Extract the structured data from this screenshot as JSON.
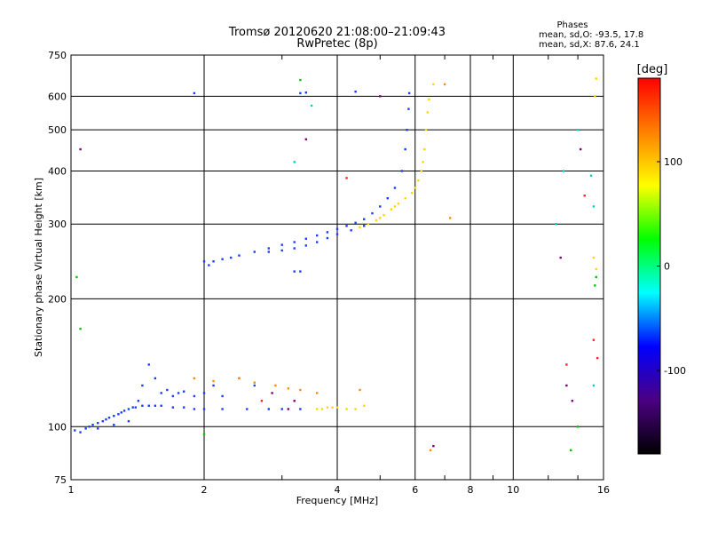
{
  "chart_data": {
    "type": "scatter",
    "title": "Tromsø 20120620 21:08:00–21:09:43",
    "subtitle": "RwPretec (8p)",
    "xlabel": "Frequency [MHz]",
    "ylabel": "Stationary phase Virtual Height [km]",
    "x_scale": "log",
    "y_scale": "log",
    "xlim": [
      1,
      16
    ],
    "ylim": [
      75,
      750
    ],
    "x_ticks": [
      1,
      2,
      4,
      6,
      8,
      10,
      16
    ],
    "x_tick_labels": [
      "1",
      "2",
      "4",
      "6",
      "8",
      "10",
      "16"
    ],
    "x_minor_ticks": [
      3,
      5,
      7,
      9,
      12,
      14
    ],
    "y_ticks": [
      75,
      100,
      200,
      300,
      400,
      500,
      600,
      750
    ],
    "y_tick_labels": [
      "75",
      "100",
      "200",
      "300",
      "400",
      "500",
      "600",
      "750"
    ],
    "grid": true,
    "stats_header": "Phases",
    "stats": [
      "mean, sd,O: -93.5, 17.8",
      "mean, sd,X:  87.6, 24.1"
    ],
    "colorbar": {
      "label": "[deg]",
      "range": [
        -180,
        180
      ],
      "ticks": [
        100,
        0,
        -100
      ],
      "tick_labels": [
        "100",
        "0",
        "-100"
      ],
      "colors": [
        "#ff0000",
        "#ff8000",
        "#ffff00",
        "#00ff00",
        "#00ffff",
        "#0000ff",
        "#4b0082",
        "#000000"
      ]
    },
    "series": [
      {
        "color": "#1c3cff",
        "points": [
          [
            1.02,
            98
          ],
          [
            1.05,
            97
          ],
          [
            1.08,
            99
          ],
          [
            1.1,
            100
          ],
          [
            1.12,
            101
          ],
          [
            1.15,
            102
          ],
          [
            1.18,
            103
          ],
          [
            1.2,
            104
          ],
          [
            1.22,
            105
          ],
          [
            1.25,
            106
          ],
          [
            1.28,
            107
          ],
          [
            1.3,
            108
          ],
          [
            1.32,
            109
          ],
          [
            1.35,
            110
          ],
          [
            1.38,
            111
          ],
          [
            1.4,
            111
          ],
          [
            1.45,
            112
          ],
          [
            1.5,
            112
          ],
          [
            1.55,
            112
          ],
          [
            1.6,
            112
          ],
          [
            1.7,
            111
          ],
          [
            1.8,
            111
          ],
          [
            1.9,
            110
          ],
          [
            2.0,
            110
          ],
          [
            2.2,
            110
          ],
          [
            2.5,
            110
          ],
          [
            2.8,
            110
          ],
          [
            3.0,
            110
          ],
          [
            3.3,
            110
          ],
          [
            1.15,
            99
          ],
          [
            1.25,
            101
          ],
          [
            1.35,
            103
          ],
          [
            1.42,
            115
          ],
          [
            1.45,
            125
          ],
          [
            1.5,
            140
          ],
          [
            1.55,
            130
          ],
          [
            1.6,
            120
          ],
          [
            1.65,
            122
          ],
          [
            1.7,
            118
          ],
          [
            1.75,
            120
          ],
          [
            1.8,
            121
          ],
          [
            1.9,
            118
          ],
          [
            2.0,
            120
          ],
          [
            2.1,
            125
          ],
          [
            2.2,
            118
          ],
          [
            2.4,
            130
          ],
          [
            2.6,
            125
          ],
          [
            2.0,
            245
          ],
          [
            2.05,
            240
          ],
          [
            2.1,
            245
          ],
          [
            2.2,
            248
          ],
          [
            2.3,
            250
          ],
          [
            2.4,
            253
          ],
          [
            2.6,
            258
          ],
          [
            2.8,
            263
          ],
          [
            3.0,
            268
          ],
          [
            3.2,
            272
          ],
          [
            3.4,
            277
          ],
          [
            3.6,
            282
          ],
          [
            3.8,
            287
          ],
          [
            4.0,
            292
          ],
          [
            4.2,
            297
          ],
          [
            4.4,
            302
          ],
          [
            4.6,
            308
          ],
          [
            4.8,
            318
          ],
          [
            5.0,
            330
          ],
          [
            5.2,
            345
          ],
          [
            5.4,
            365
          ],
          [
            5.6,
            400
          ],
          [
            5.7,
            450
          ],
          [
            5.75,
            500
          ],
          [
            5.8,
            560
          ],
          [
            5.82,
            610
          ],
          [
            2.8,
            258
          ],
          [
            3.0,
            260
          ],
          [
            3.2,
            263
          ],
          [
            3.4,
            267
          ],
          [
            3.6,
            272
          ],
          [
            3.8,
            278
          ],
          [
            4.0,
            284
          ],
          [
            4.3,
            290
          ],
          [
            4.6,
            297
          ],
          [
            3.2,
            232
          ],
          [
            3.3,
            232
          ],
          [
            1.9,
            610
          ],
          [
            3.3,
            610
          ],
          [
            3.4,
            612
          ],
          [
            4.4,
            615
          ]
        ]
      },
      {
        "color": "#ffd700",
        "points": [
          [
            3.6,
            110
          ],
          [
            3.7,
            110
          ],
          [
            3.8,
            111
          ],
          [
            3.9,
            111
          ],
          [
            4.0,
            111
          ],
          [
            4.2,
            110
          ],
          [
            4.4,
            110
          ],
          [
            4.6,
            112
          ],
          [
            4.5,
            295
          ],
          [
            4.7,
            300
          ],
          [
            4.9,
            306
          ],
          [
            5.1,
            315
          ],
          [
            5.3,
            325
          ],
          [
            5.5,
            335
          ],
          [
            5.7,
            345
          ],
          [
            5.9,
            355
          ],
          [
            6.0,
            365
          ],
          [
            6.1,
            380
          ],
          [
            6.2,
            400
          ],
          [
            6.25,
            420
          ],
          [
            6.3,
            450
          ],
          [
            6.35,
            500
          ],
          [
            6.4,
            550
          ],
          [
            6.45,
            590
          ],
          [
            5.0,
            310
          ],
          [
            5.4,
            330
          ],
          [
            6.6,
            640
          ],
          [
            15.3,
            600
          ],
          [
            15.4,
            660
          ],
          [
            15.2,
            250
          ],
          [
            15.4,
            235
          ]
        ]
      },
      {
        "color": "#ff8c00",
        "points": [
          [
            2.4,
            130
          ],
          [
            2.6,
            127
          ],
          [
            2.9,
            125
          ],
          [
            3.1,
            123
          ],
          [
            3.3,
            122
          ],
          [
            4.5,
            122
          ],
          [
            7.0,
            640
          ],
          [
            7.2,
            310
          ],
          [
            6.5,
            88
          ],
          [
            1.9,
            130
          ],
          [
            2.1,
            128
          ],
          [
            3.6,
            120
          ]
        ]
      },
      {
        "color": "#00c800",
        "points": [
          [
            1.03,
            225
          ],
          [
            3.3,
            655
          ],
          [
            15.3,
            215
          ],
          [
            15.4,
            225
          ],
          [
            13.5,
            88
          ],
          [
            14.0,
            100
          ],
          [
            1.05,
            170
          ],
          [
            2.0,
            96
          ]
        ]
      },
      {
        "color": "#00d0d0",
        "points": [
          [
            15.0,
            390
          ],
          [
            15.2,
            330
          ],
          [
            15.2,
            125
          ],
          [
            14.0,
            500
          ],
          [
            13.0,
            400
          ],
          [
            12.5,
            300
          ],
          [
            3.2,
            420
          ],
          [
            3.5,
            570
          ]
        ]
      },
      {
        "color": "#800080",
        "points": [
          [
            1.05,
            450
          ],
          [
            2.85,
            120
          ],
          [
            3.1,
            110
          ],
          [
            3.2,
            115
          ],
          [
            3.4,
            475
          ],
          [
            5.0,
            600
          ],
          [
            13.2,
            125
          ],
          [
            13.6,
            115
          ],
          [
            14.2,
            450
          ],
          [
            6.6,
            90
          ],
          [
            12.8,
            250
          ]
        ]
      },
      {
        "color": "#ff2020",
        "points": [
          [
            2.7,
            115
          ],
          [
            4.2,
            385
          ],
          [
            13.2,
            140
          ],
          [
            15.2,
            160
          ],
          [
            15.5,
            145
          ],
          [
            14.5,
            350
          ]
        ]
      }
    ]
  }
}
